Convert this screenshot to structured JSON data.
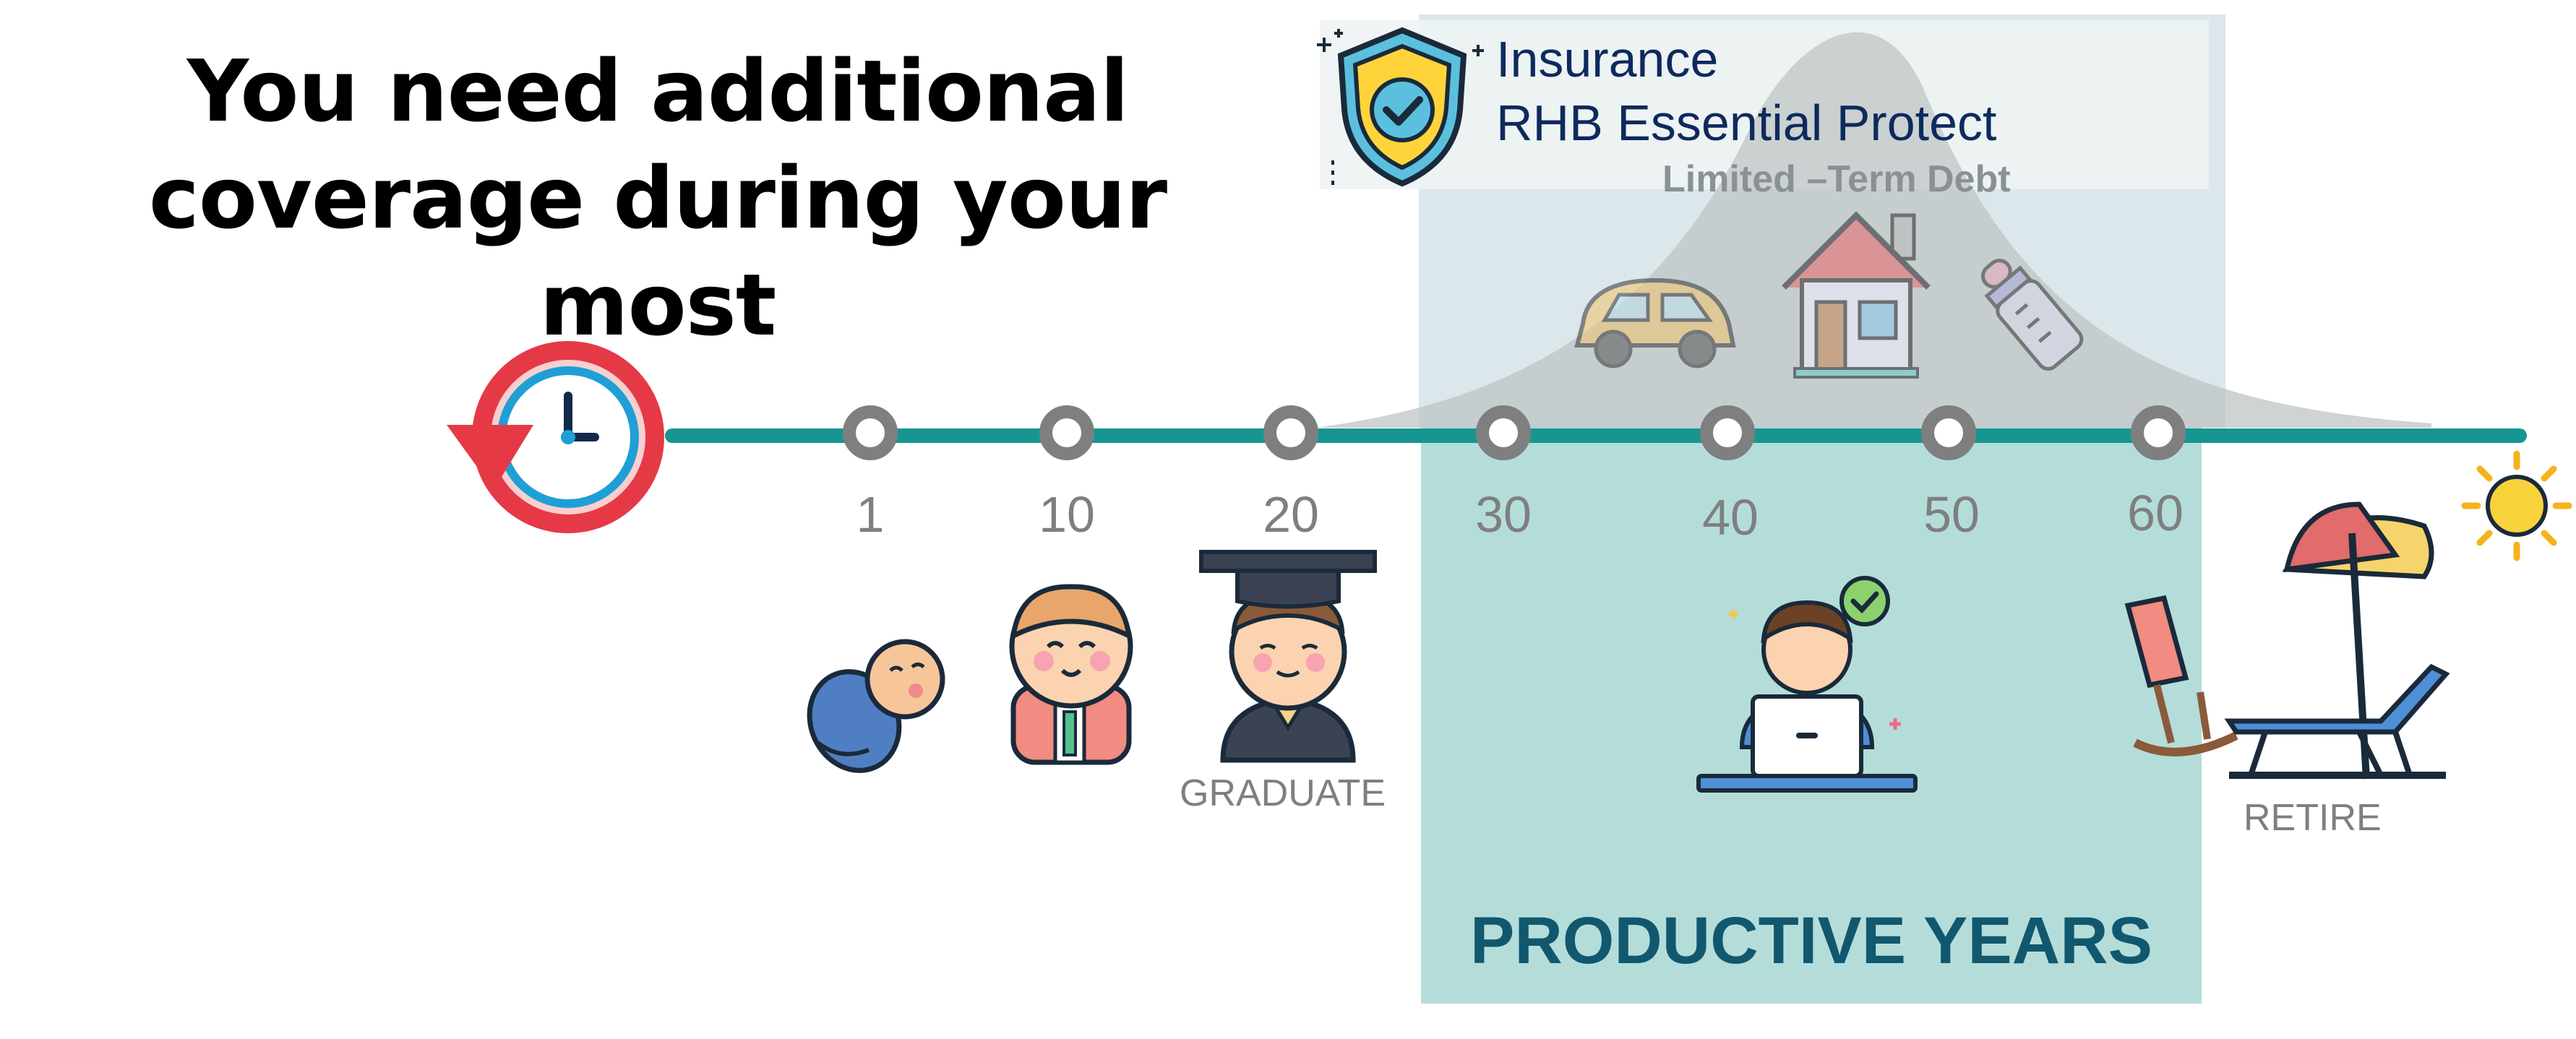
{
  "headline": {
    "line1": "You need additional",
    "line2": "coverage during your most"
  },
  "insurance": {
    "line1": "Insurance",
    "line2": "RHB Essential Protect",
    "debt_label": "Limited –Term Debt"
  },
  "timeline": {
    "ages": [
      "1",
      "10",
      "20",
      "30",
      "40",
      "50",
      "60"
    ]
  },
  "labels": {
    "graduate": "GRADUATE",
    "retire": "RETIRE",
    "productive": "PRODUCTIVE YEARS"
  },
  "icons": [
    "clock-reverse-icon",
    "shield-check-icon",
    "car-icon",
    "house-icon",
    "baby-bottle-icon",
    "baby-icon",
    "child-icon",
    "graduate-icon",
    "laptop-worker-icon",
    "beach-chair-umbrella-icon",
    "sun-icon"
  ],
  "colors": {
    "timeline": "#179591",
    "productive_bg": "#b4ddda",
    "node": "#7f7f7f",
    "title_blue": "#0d2a5c",
    "productive_text": "#11586e"
  }
}
